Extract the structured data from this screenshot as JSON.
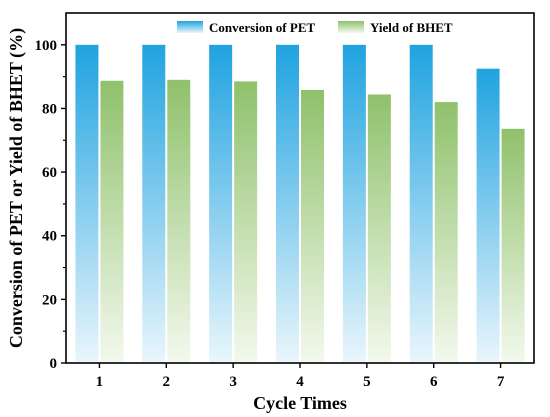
{
  "chart_data": {
    "type": "bar",
    "categories": [
      "1",
      "2",
      "3",
      "4",
      "5",
      "6",
      "7"
    ],
    "series": [
      {
        "name": "Conversion of PET",
        "values": [
          100,
          100,
          100,
          100,
          100,
          100,
          92.5
        ]
      },
      {
        "name": "Yield of BHET",
        "values": [
          88.7,
          89.0,
          88.5,
          85.8,
          84.4,
          82.0,
          73.6
        ]
      }
    ],
    "xlabel": "Cycle Times",
    "ylabel": "Conversion of PET or Yield of BHET (%)",
    "ylim": [
      0,
      110
    ],
    "yticks": [
      0,
      20,
      40,
      60,
      80,
      100
    ],
    "grid": false,
    "legend_position": "top-center",
    "colors": {
      "conversion_top": "#1fa3e0",
      "conversion_bottom": "#eaf6fc",
      "yield_top": "#8fc16b",
      "yield_bottom": "#f3f9ee"
    }
  }
}
